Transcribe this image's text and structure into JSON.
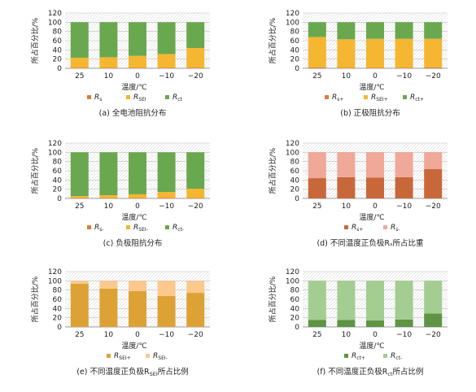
{
  "chart_data": [
    {
      "id": "a",
      "type": "bar",
      "stacked": true,
      "categories": [
        "25",
        "10",
        "0",
        "−10",
        "−20"
      ],
      "series": [
        {
          "name": "R",
          "sub": "s",
          "color": "#e07b39",
          "values": [
            1,
            1,
            1,
            1,
            1
          ]
        },
        {
          "name": "R",
          "sub": "SEI",
          "color": "#f5b632",
          "values": [
            22,
            23,
            26,
            30,
            43
          ]
        },
        {
          "name": "R",
          "sub": "ct",
          "color": "#6aa84f",
          "values": [
            77,
            76,
            73,
            69,
            56
          ]
        }
      ],
      "ylabel": "所占百分比/%",
      "xlabel": "温度/℃",
      "yticks": [
        0,
        20,
        40,
        60,
        80,
        100,
        120
      ],
      "ylim": [
        0,
        120
      ],
      "caption": "(a) 全电池阻抗分布",
      "grid": true
    },
    {
      "id": "b",
      "type": "bar",
      "stacked": true,
      "categories": [
        "25",
        "10",
        "0",
        "−10",
        "−20"
      ],
      "series": [
        {
          "name": "R",
          "sub": "s+",
          "color": "#e07b39",
          "values": [
            2,
            1,
            1,
            1,
            2
          ]
        },
        {
          "name": "R",
          "sub": "SEI+",
          "color": "#f5b632",
          "values": [
            66,
            62,
            63,
            63,
            62
          ]
        },
        {
          "name": "R",
          "sub": "ct+",
          "color": "#6aa84f",
          "values": [
            32,
            37,
            36,
            36,
            36
          ]
        }
      ],
      "ylabel": "所占百分比/%",
      "xlabel": "温度/℃",
      "yticks": [
        0,
        20,
        40,
        60,
        80,
        100,
        120
      ],
      "ylim": [
        0,
        120
      ],
      "caption": "(b) 正极阻抗分布",
      "grid": true
    },
    {
      "id": "c",
      "type": "bar",
      "stacked": true,
      "categories": [
        "25",
        "10",
        "0",
        "−10",
        "−20"
      ],
      "series": [
        {
          "name": "R",
          "sub": "s-",
          "color": "#e07b39",
          "values": [
            1,
            1,
            1,
            1,
            1
          ]
        },
        {
          "name": "R",
          "sub": "SEI-",
          "color": "#f5b632",
          "values": [
            4,
            6,
            8,
            13,
            20
          ]
        },
        {
          "name": "R",
          "sub": "ct-",
          "color": "#6aa84f",
          "values": [
            95,
            93,
            91,
            86,
            79
          ]
        }
      ],
      "ylabel": "所占百分比/%",
      "xlabel": "温度/℃",
      "yticks": [
        0,
        20,
        40,
        60,
        80,
        100,
        120
      ],
      "ylim": [
        0,
        120
      ],
      "caption": "(c) 负极阻抗分布",
      "grid": true
    },
    {
      "id": "d",
      "type": "bar",
      "stacked": true,
      "categories": [
        "25",
        "10",
        "0",
        "−10",
        "−20"
      ],
      "series": [
        {
          "name": "R",
          "sub": "s+",
          "color": "#c8683a",
          "values": [
            44,
            46,
            45,
            46,
            64
          ]
        },
        {
          "name": "R",
          "sub": "s-",
          "color": "#f0a898",
          "values": [
            56,
            54,
            55,
            54,
            36
          ]
        }
      ],
      "ylabel": "所占百分比/%",
      "xlabel": "温度/℃",
      "yticks": [
        0,
        20,
        40,
        60,
        80,
        100,
        120
      ],
      "ylim": [
        0,
        120
      ],
      "caption": "(d) 不同温度正负极Rₛ所占比重",
      "grid": true
    },
    {
      "id": "e",
      "type": "bar",
      "stacked": true,
      "categories": [
        "25",
        "10",
        "0",
        "−10",
        "−20"
      ],
      "series": [
        {
          "name": "R",
          "sub": "SEI+",
          "color": "#dda235",
          "values": [
            94,
            83,
            78,
            67,
            74
          ]
        },
        {
          "name": "R",
          "sub": "SEI-",
          "color": "#fbc98c",
          "values": [
            6,
            17,
            22,
            33,
            26
          ]
        }
      ],
      "ylabel": "所占百分比/%",
      "xlabel": "温度/℃",
      "yticks": [
        0,
        20,
        40,
        60,
        80,
        100,
        120
      ],
      "ylim": [
        0,
        120
      ],
      "caption": "(e) 不同温度正负极R",
      "caption_sub": "SEI",
      "caption_tail": "所占比例",
      "grid": true
    },
    {
      "id": "f",
      "type": "bar",
      "stacked": true,
      "categories": [
        "25",
        "10",
        "0",
        "−10",
        "−20"
      ],
      "series": [
        {
          "name": "R",
          "sub": "ct+",
          "color": "#5e9443",
          "values": [
            15,
            15,
            14,
            16,
            29
          ]
        },
        {
          "name": "R",
          "sub": "ct-",
          "color": "#a4cd91",
          "values": [
            85,
            85,
            86,
            84,
            71
          ]
        }
      ],
      "ylabel": "所占百分比/%",
      "xlabel": "温度/℃",
      "yticks": [
        0,
        20,
        40,
        60,
        80,
        100,
        120
      ],
      "ylim": [
        0,
        120
      ],
      "caption": "(f) 不同温度正负极R",
      "caption_sub": "ct",
      "caption_tail": "所占比例",
      "grid": true
    }
  ]
}
